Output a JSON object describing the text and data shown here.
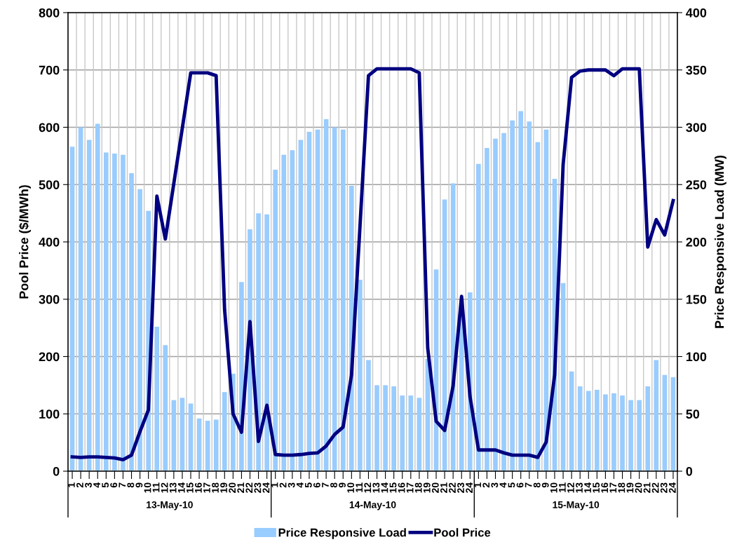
{
  "chart_data": {
    "type": "bar",
    "categories": [
      "1",
      "2",
      "3",
      "4",
      "5",
      "6",
      "7",
      "8",
      "9",
      "10",
      "11",
      "12",
      "13",
      "14",
      "15",
      "16",
      "17",
      "18",
      "19",
      "20",
      "21",
      "22",
      "23",
      "24",
      "1",
      "2",
      "3",
      "4",
      "5",
      "6",
      "7",
      "8",
      "9",
      "10",
      "11",
      "12",
      "13",
      "14",
      "15",
      "16",
      "17",
      "18",
      "19",
      "20",
      "21",
      "22",
      "23",
      "24",
      "1",
      "2",
      "3",
      "4",
      "5",
      "6",
      "7",
      "8",
      "9",
      "10",
      "11",
      "12",
      "13",
      "14",
      "15",
      "16",
      "17",
      "18",
      "19",
      "20",
      "21",
      "22",
      "23",
      "24"
    ],
    "series": [
      {
        "name": "Price Responsive Load",
        "axis": "y2",
        "color": "#99ccff",
        "values": [
          283,
          300,
          289,
          303,
          278,
          277,
          276,
          260,
          246,
          227,
          126,
          110,
          62,
          64,
          59,
          46,
          44,
          45,
          69,
          85,
          165,
          211,
          225,
          224,
          263,
          276,
          280,
          289,
          296,
          298,
          307,
          300,
          298,
          249,
          167,
          97,
          75,
          75,
          74,
          66,
          66,
          64,
          98,
          176,
          237,
          251,
          150,
          156,
          268,
          282,
          290,
          295,
          306,
          314,
          305,
          287,
          298,
          255,
          164,
          87,
          74,
          70,
          71,
          67,
          68,
          66,
          62,
          62,
          74,
          97,
          84,
          82
        ]
      },
      {
        "name": "Pool Price",
        "type": "line",
        "color": "#000080",
        "marker": "none",
        "line_style": "solid",
        "values": [
          25,
          24,
          25,
          25,
          24,
          23,
          20,
          28,
          69,
          107,
          480,
          405,
          502,
          598,
          695,
          695,
          695,
          690,
          282,
          100,
          68,
          261,
          52,
          115,
          29,
          28,
          28,
          29,
          31,
          32,
          44,
          64,
          77,
          168,
          428,
          690,
          702,
          702,
          702,
          702,
          702,
          695,
          215,
          87,
          71,
          149,
          305,
          130,
          37,
          37,
          37,
          32,
          28,
          28,
          28,
          24,
          51,
          168,
          535,
          687,
          698,
          700,
          700,
          700,
          690,
          702,
          702,
          702,
          391,
          439,
          412,
          472
        ]
      }
    ],
    "ylabel": "Pool Price ($/MWh)",
    "y2label": "Price Responsive Load (MW)",
    "ylim": [
      0,
      800
    ],
    "yticks": [
      0,
      100,
      200,
      300,
      400,
      500,
      600,
      700,
      800
    ],
    "y2lim": [
      0,
      400
    ],
    "y2ticks": [
      0,
      50,
      100,
      150,
      200,
      250,
      300,
      350,
      400
    ],
    "annotations": [
      "13-May-10",
      "14-May-10",
      "15-May-10"
    ],
    "grid": true,
    "legend": "bottom"
  }
}
